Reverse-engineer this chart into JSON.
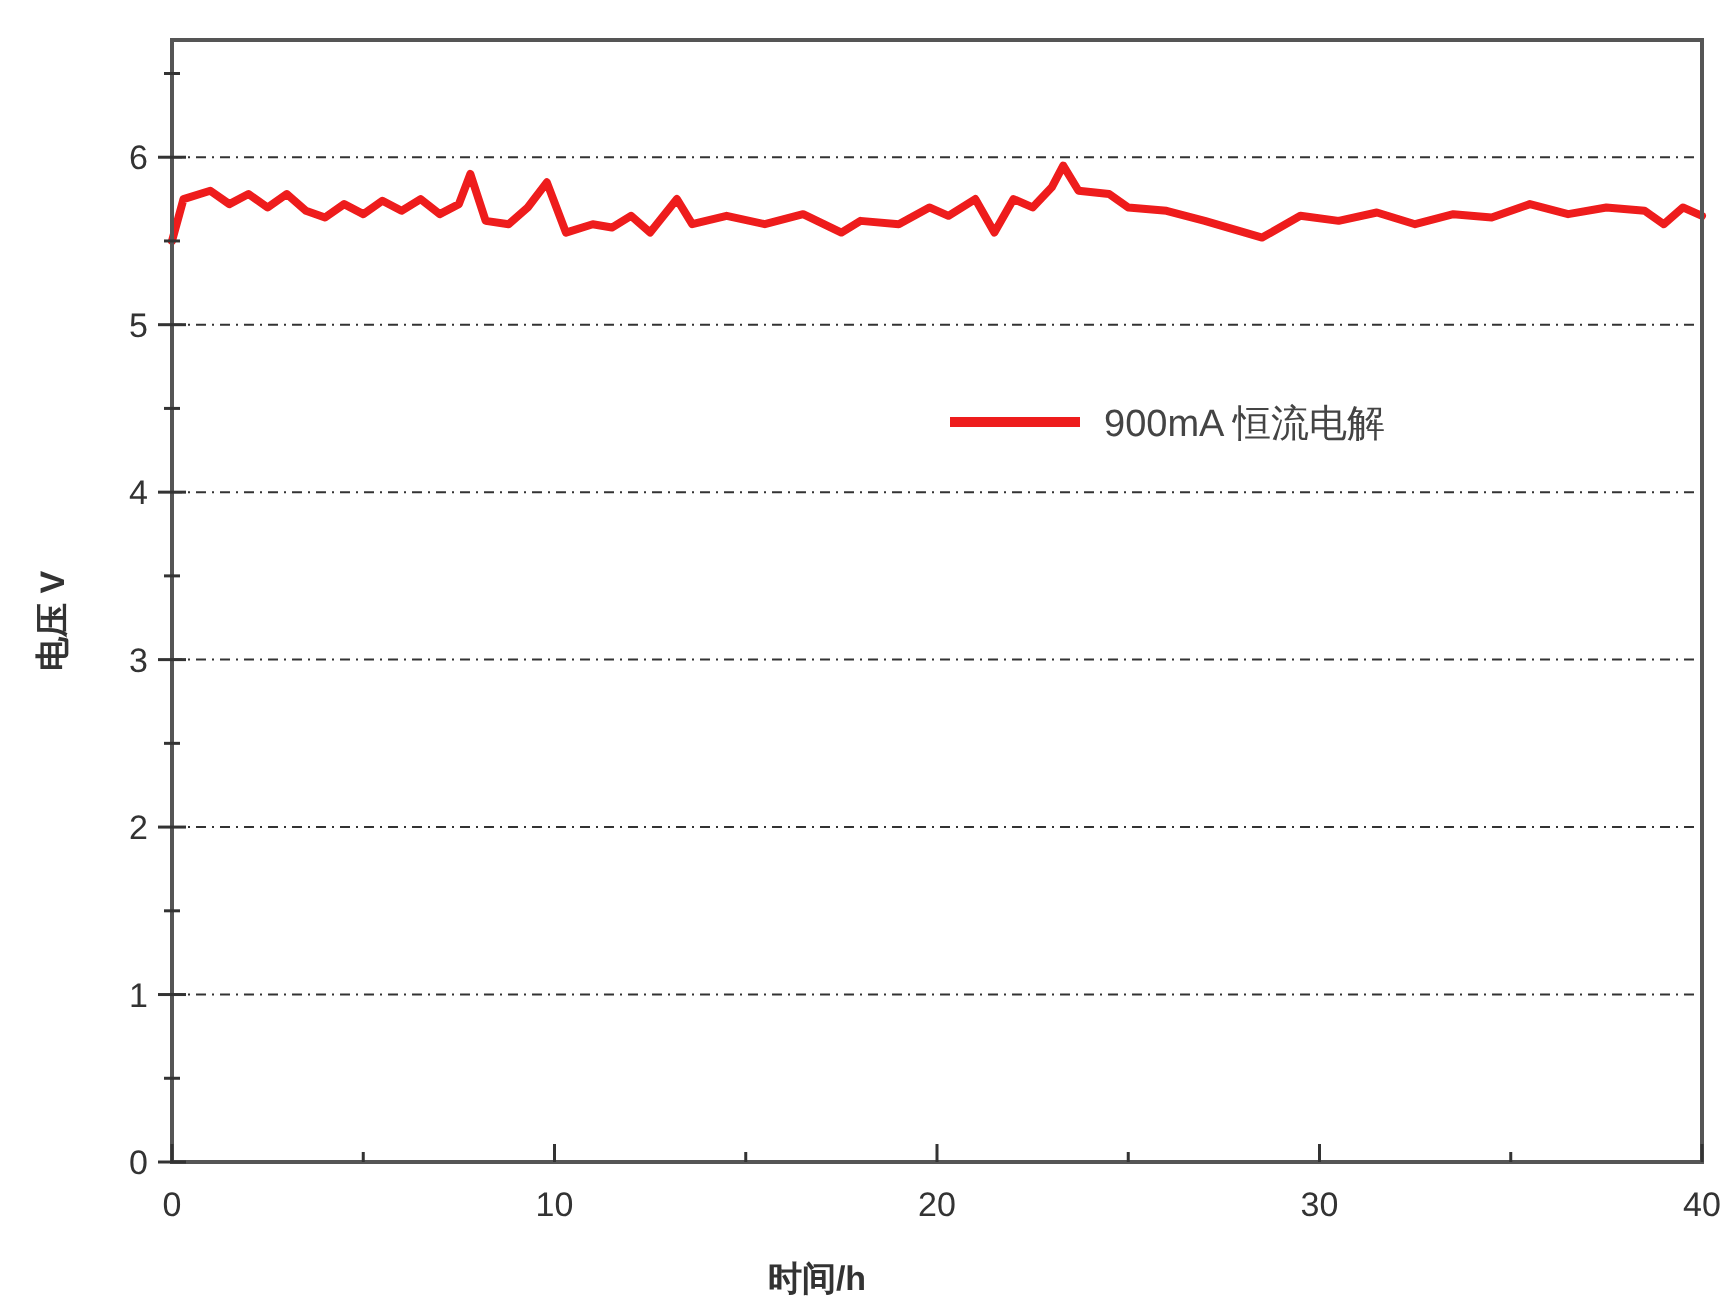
{
  "chart_data": {
    "type": "line",
    "xlabel": "时间/h",
    "ylabel": "电压 V",
    "xlim": [
      0,
      40
    ],
    "ylim": [
      0,
      6.7
    ],
    "xticks": [
      0,
      {
        "value": 5,
        "label": null
      },
      10,
      {
        "value": 15,
        "label": null
      },
      20,
      {
        "value": 25,
        "label": null
      },
      30,
      {
        "value": 35,
        "label": null
      },
      40
    ],
    "yticks": [
      0,
      {
        "value": 0.5,
        "label": null
      },
      1,
      {
        "value": 1.5,
        "label": null
      },
      2,
      {
        "value": 2.5,
        "label": null
      },
      3,
      {
        "value": 3.5,
        "label": null
      },
      4,
      {
        "value": 4.5,
        "label": null
      },
      5,
      {
        "value": 5.5,
        "label": null
      },
      6,
      {
        "value": 6.5,
        "label": null
      }
    ],
    "grid": "y",
    "legend": "top right",
    "line_style": "solid",
    "marker": "none",
    "series": [
      {
        "name": "900mA 恒流电解",
        "color": "#ee1c1c",
        "x": [
          0,
          0.3,
          1,
          1.5,
          2,
          2.5,
          3,
          3.5,
          4,
          4.5,
          5,
          5.5,
          6,
          6.5,
          7,
          7.5,
          7.8,
          8.2,
          8.8,
          9.3,
          9.8,
          10.3,
          11,
          11.5,
          12,
          12.5,
          13.2,
          13.6,
          14.5,
          15.5,
          16.5,
          17.5,
          18,
          19,
          19.8,
          20.3,
          21,
          21.5,
          22,
          22.5,
          23,
          23.3,
          23.7,
          24.5,
          25,
          26,
          27,
          28.5,
          29.5,
          30.5,
          31.5,
          32.5,
          33.5,
          34.5,
          35.5,
          36.5,
          37.5,
          38.5,
          39,
          39.5,
          40
        ],
        "values": [
          5.5,
          5.75,
          5.8,
          5.72,
          5.78,
          5.7,
          5.78,
          5.68,
          5.64,
          5.72,
          5.66,
          5.74,
          5.68,
          5.75,
          5.66,
          5.72,
          5.9,
          5.62,
          5.6,
          5.7,
          5.85,
          5.55,
          5.6,
          5.58,
          5.65,
          5.55,
          5.75,
          5.6,
          5.65,
          5.6,
          5.66,
          5.55,
          5.62,
          5.6,
          5.7,
          5.65,
          5.75,
          5.55,
          5.75,
          5.7,
          5.82,
          5.95,
          5.8,
          5.78,
          5.7,
          5.68,
          5.62,
          5.52,
          5.65,
          5.62,
          5.67,
          5.6,
          5.66,
          5.64,
          5.72,
          5.66,
          5.7,
          5.68,
          5.6,
          5.7,
          5.65
        ]
      }
    ]
  }
}
